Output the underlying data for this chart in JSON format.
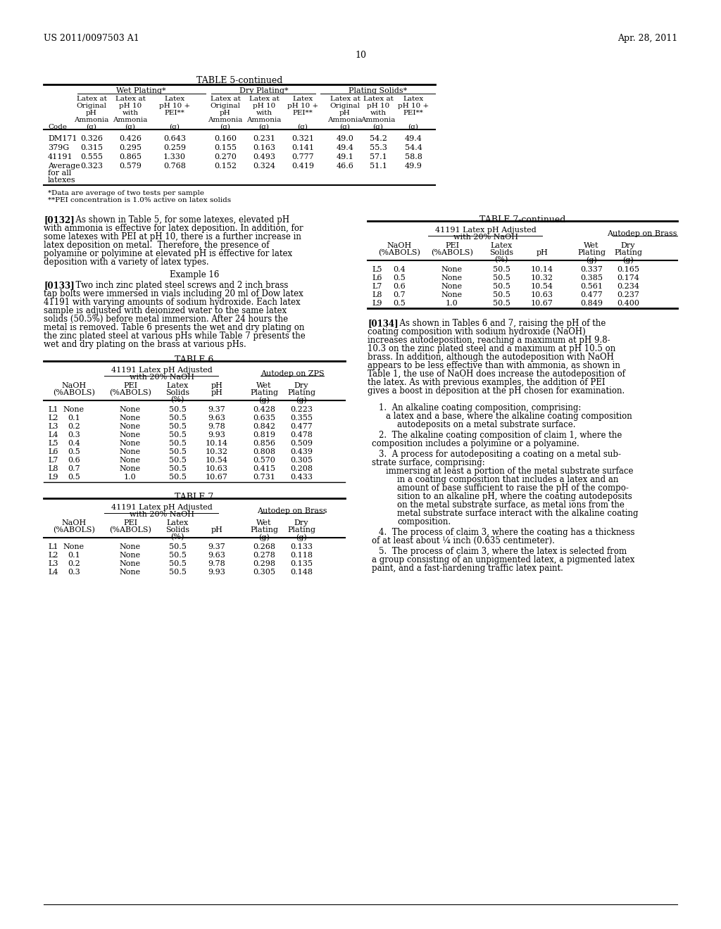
{
  "header_left": "US 2011/0097503 A1",
  "header_right": "Apr. 28, 2011",
  "page_number": "10",
  "bg_color": "#ffffff",
  "footnote1": "*Data are average of two tests per sample",
  "footnote2": "**PEI concentration is 1.0% active on latex solids",
  "table5_data": [
    [
      "DM171",
      "0.326",
      "0.426",
      "0.643",
      "0.160",
      "0.231",
      "0.321",
      "49.0",
      "54.2",
      "49.4"
    ],
    [
      "379G",
      "0.315",
      "0.295",
      "0.259",
      "0.155",
      "0.163",
      "0.141",
      "49.4",
      "55.3",
      "54.4"
    ],
    [
      "41191",
      "0.555",
      "0.865",
      "1.330",
      "0.270",
      "0.493",
      "0.777",
      "49.1",
      "57.1",
      "58.8"
    ],
    [
      "Average",
      "0.323",
      "0.579",
      "0.768",
      "0.152",
      "0.324",
      "0.419",
      "46.6",
      "51.1",
      "49.9"
    ]
  ],
  "table6_data": [
    [
      "L1",
      "None",
      "None",
      "50.5",
      "9.37",
      "0.428",
      "0.223"
    ],
    [
      "L2",
      "0.1",
      "None",
      "50.5",
      "9.63",
      "0.635",
      "0.355"
    ],
    [
      "L3",
      "0.2",
      "None",
      "50.5",
      "9.78",
      "0.842",
      "0.477"
    ],
    [
      "L4",
      "0.3",
      "None",
      "50.5",
      "9.93",
      "0.819",
      "0.478"
    ],
    [
      "L5",
      "0.4",
      "None",
      "50.5",
      "10.14",
      "0.856",
      "0.509"
    ],
    [
      "L6",
      "0.5",
      "None",
      "50.5",
      "10.32",
      "0.808",
      "0.439"
    ],
    [
      "L7",
      "0.6",
      "None",
      "50.5",
      "10.54",
      "0.570",
      "0.305"
    ],
    [
      "L8",
      "0.7",
      "None",
      "50.5",
      "10.63",
      "0.415",
      "0.208"
    ],
    [
      "L9",
      "0.5",
      "1.0",
      "50.5",
      "10.67",
      "0.731",
      "0.433"
    ]
  ],
  "table7_top_data": [
    [
      "L1",
      "None",
      "None",
      "50.5",
      "9.37",
      "0.268",
      "0.133"
    ],
    [
      "L2",
      "0.1",
      "None",
      "50.5",
      "9.63",
      "0.278",
      "0.118"
    ],
    [
      "L3",
      "0.2",
      "None",
      "50.5",
      "9.78",
      "0.298",
      "0.135"
    ],
    [
      "L4",
      "0.3",
      "None",
      "50.5",
      "9.93",
      "0.305",
      "0.148"
    ]
  ],
  "table7_cont_data": [
    [
      "L5",
      "0.4",
      "None",
      "50.5",
      "10.14",
      "0.337",
      "0.165"
    ],
    [
      "L6",
      "0.5",
      "None",
      "50.5",
      "10.32",
      "0.385",
      "0.174"
    ],
    [
      "L7",
      "0.6",
      "None",
      "50.5",
      "10.54",
      "0.561",
      "0.234"
    ],
    [
      "L8",
      "0.7",
      "None",
      "50.5",
      "10.63",
      "0.477",
      "0.237"
    ],
    [
      "L9",
      "0.5",
      "1.0",
      "50.5",
      "10.67",
      "0.849",
      "0.400"
    ]
  ]
}
